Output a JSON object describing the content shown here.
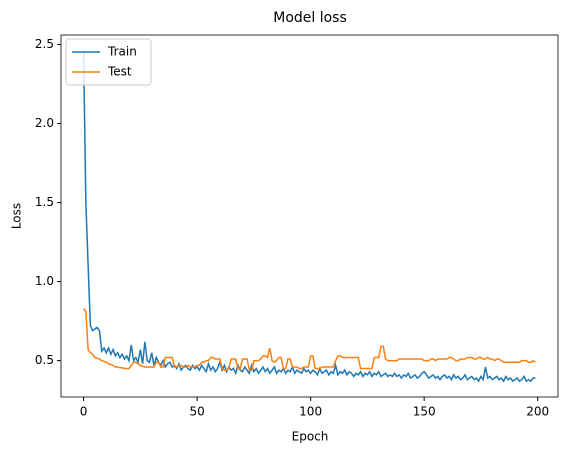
{
  "chart_data": {
    "type": "line",
    "title": "Model loss",
    "x_label": "Epoch",
    "y_label": "Loss",
    "x": [
      0,
      1,
      2,
      3,
      4,
      5,
      6,
      7,
      8,
      9,
      10,
      11,
      12,
      13,
      14,
      15,
      16,
      17,
      18,
      19,
      20,
      21,
      22,
      23,
      24,
      25,
      26,
      27,
      28,
      29,
      30,
      31,
      32,
      33,
      34,
      35,
      36,
      37,
      38,
      39,
      40,
      41,
      42,
      43,
      44,
      45,
      46,
      47,
      48,
      49,
      50,
      51,
      52,
      53,
      54,
      55,
      56,
      57,
      58,
      59,
      60,
      61,
      62,
      63,
      64,
      65,
      66,
      67,
      68,
      69,
      70,
      71,
      72,
      73,
      74,
      75,
      76,
      77,
      78,
      79,
      80,
      81,
      82,
      83,
      84,
      85,
      86,
      87,
      88,
      89,
      90,
      91,
      92,
      93,
      94,
      95,
      96,
      97,
      98,
      99,
      100,
      101,
      102,
      103,
      104,
      105,
      106,
      107,
      108,
      109,
      110,
      111,
      112,
      113,
      114,
      115,
      116,
      117,
      118,
      119,
      120,
      121,
      122,
      123,
      124,
      125,
      126,
      127,
      128,
      129,
      130,
      131,
      132,
      133,
      134,
      135,
      136,
      137,
      138,
      139,
      140,
      141,
      142,
      143,
      144,
      145,
      146,
      147,
      148,
      149,
      150,
      151,
      152,
      153,
      154,
      155,
      156,
      157,
      158,
      159,
      160,
      161,
      162,
      163,
      164,
      165,
      166,
      167,
      168,
      169,
      170,
      171,
      172,
      173,
      174,
      175,
      176,
      177,
      178,
      179,
      180,
      181,
      182,
      183,
      184,
      185,
      186,
      187,
      188,
      189,
      190,
      191,
      192,
      193,
      194,
      195,
      196,
      197,
      198,
      199
    ],
    "series": [
      {
        "name": "Train",
        "color": "#1f77b4",
        "values": [
          2.45,
          1.5,
          1.1,
          0.72,
          0.69,
          0.7,
          0.71,
          0.69,
          0.56,
          0.58,
          0.55,
          0.58,
          0.54,
          0.57,
          0.53,
          0.55,
          0.52,
          0.54,
          0.51,
          0.53,
          0.5,
          0.6,
          0.5,
          0.52,
          0.49,
          0.57,
          0.48,
          0.62,
          0.5,
          0.49,
          0.55,
          0.47,
          0.52,
          0.49,
          0.47,
          0.5,
          0.46,
          0.48,
          0.49,
          0.46,
          0.47,
          0.45,
          0.48,
          0.44,
          0.46,
          0.47,
          0.45,
          0.44,
          0.47,
          0.45,
          0.46,
          0.44,
          0.47,
          0.45,
          0.43,
          0.48,
          0.44,
          0.46,
          0.43,
          0.45,
          0.49,
          0.44,
          0.47,
          0.43,
          0.46,
          0.44,
          0.45,
          0.42,
          0.47,
          0.44,
          0.43,
          0.46,
          0.44,
          0.42,
          0.47,
          0.43,
          0.45,
          0.42,
          0.44,
          0.46,
          0.43,
          0.45,
          0.42,
          0.44,
          0.46,
          0.42,
          0.44,
          0.43,
          0.45,
          0.42,
          0.44,
          0.43,
          0.46,
          0.42,
          0.44,
          0.43,
          0.42,
          0.45,
          0.43,
          0.44,
          0.42,
          0.44,
          0.43,
          0.41,
          0.45,
          0.42,
          0.43,
          0.44,
          0.41,
          0.43,
          0.42,
          0.47,
          0.41,
          0.43,
          0.42,
          0.44,
          0.41,
          0.43,
          0.42,
          0.4,
          0.42,
          0.41,
          0.43,
          0.4,
          0.42,
          0.41,
          0.43,
          0.4,
          0.42,
          0.41,
          0.43,
          0.4,
          0.41,
          0.42,
          0.4,
          0.41,
          0.4,
          0.42,
          0.4,
          0.41,
          0.39,
          0.41,
          0.4,
          0.42,
          0.39,
          0.4,
          0.41,
          0.39,
          0.4,
          0.42,
          0.43,
          0.41,
          0.39,
          0.4,
          0.41,
          0.39,
          0.4,
          0.38,
          0.4,
          0.41,
          0.39,
          0.4,
          0.38,
          0.41,
          0.39,
          0.4,
          0.38,
          0.39,
          0.41,
          0.38,
          0.39,
          0.4,
          0.38,
          0.39,
          0.37,
          0.4,
          0.38,
          0.46,
          0.39,
          0.4,
          0.38,
          0.39,
          0.4,
          0.38,
          0.39,
          0.37,
          0.4,
          0.38,
          0.39,
          0.37,
          0.38,
          0.39,
          0.37,
          0.38,
          0.4,
          0.37,
          0.38,
          0.37,
          0.39,
          0.39
        ]
      },
      {
        "name": "Test",
        "color": "#ff7f0e",
        "values": [
          0.83,
          0.81,
          0.57,
          0.55,
          0.54,
          0.52,
          0.515,
          0.51,
          0.5,
          0.495,
          0.49,
          0.48,
          0.475,
          0.47,
          0.46,
          0.46,
          0.455,
          0.455,
          0.45,
          0.45,
          0.45,
          0.47,
          0.49,
          0.49,
          0.48,
          0.47,
          0.465,
          0.46,
          0.46,
          0.46,
          0.46,
          0.46,
          0.49,
          0.49,
          0.46,
          0.46,
          0.52,
          0.52,
          0.52,
          0.52,
          0.46,
          0.46,
          0.47,
          0.47,
          0.46,
          0.46,
          0.47,
          0.46,
          0.46,
          0.46,
          0.47,
          0.47,
          0.49,
          0.49,
          0.5,
          0.5,
          0.52,
          0.52,
          0.51,
          0.51,
          0.51,
          0.45,
          0.44,
          0.44,
          0.45,
          0.51,
          0.51,
          0.51,
          0.45,
          0.45,
          0.51,
          0.51,
          0.51,
          0.44,
          0.44,
          0.5,
          0.5,
          0.5,
          0.51,
          0.53,
          0.53,
          0.52,
          0.58,
          0.5,
          0.49,
          0.5,
          0.52,
          0.52,
          0.45,
          0.45,
          0.51,
          0.51,
          0.46,
          0.46,
          0.46,
          0.45,
          0.45,
          0.46,
          0.46,
          0.46,
          0.53,
          0.53,
          0.45,
          0.45,
          0.45,
          0.46,
          0.46,
          0.46,
          0.46,
          0.46,
          0.46,
          0.5,
          0.53,
          0.53,
          0.52,
          0.52,
          0.52,
          0.52,
          0.52,
          0.52,
          0.52,
          0.52,
          0.45,
          0.45,
          0.45,
          0.45,
          0.45,
          0.45,
          0.52,
          0.52,
          0.52,
          0.59,
          0.59,
          0.51,
          0.5,
          0.5,
          0.5,
          0.5,
          0.5,
          0.51,
          0.51,
          0.51,
          0.51,
          0.51,
          0.51,
          0.51,
          0.51,
          0.51,
          0.51,
          0.51,
          0.5,
          0.5,
          0.5,
          0.51,
          0.51,
          0.5,
          0.51,
          0.51,
          0.51,
          0.51,
          0.51,
          0.52,
          0.52,
          0.51,
          0.5,
          0.5,
          0.51,
          0.51,
          0.51,
          0.52,
          0.52,
          0.52,
          0.51,
          0.51,
          0.52,
          0.52,
          0.51,
          0.51,
          0.52,
          0.51,
          0.51,
          0.5,
          0.51,
          0.51,
          0.5,
          0.49,
          0.49,
          0.49,
          0.49,
          0.49,
          0.49,
          0.49,
          0.49,
          0.5,
          0.5,
          0.5,
          0.49,
          0.49,
          0.5,
          0.49
        ]
      }
    ],
    "xlim": [
      -9.95,
      208.95
    ],
    "xticks": [
      0,
      50,
      100,
      150,
      200
    ],
    "ylim": [
      0.27,
      2.56
    ],
    "yticks": [
      0.5,
      {
        "value": 1,
        "label": "1.0"
      },
      1.5,
      {
        "value": 2,
        "label": "2.0"
      },
      2.5
    ],
    "grid": false,
    "legend": "upper left"
  }
}
